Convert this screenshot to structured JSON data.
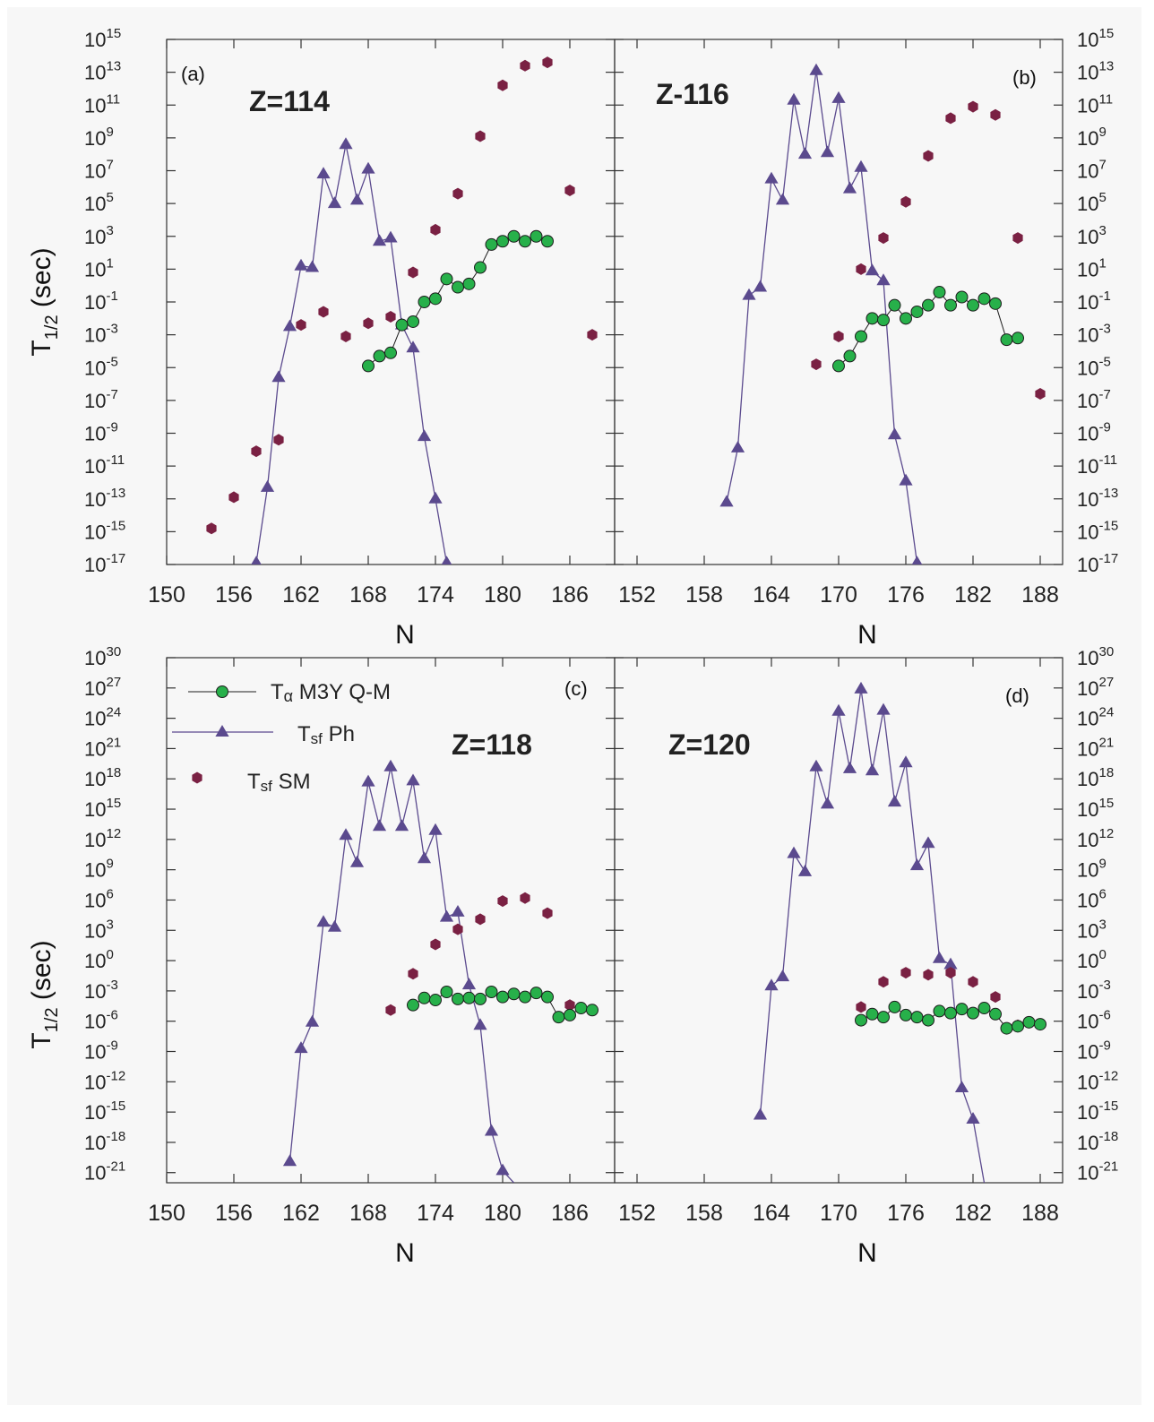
{
  "figure": {
    "y_axis_title_main": "T",
    "y_axis_title_sub": "1/2",
    "y_axis_title_tail": " (sec)",
    "x_axis_title": "N",
    "legend": {
      "alpha": {
        "prefix": "T",
        "sub": "α",
        "label": " M3Y Q-M"
      },
      "sf_ph": {
        "prefix": "T",
        "sub": "sf",
        "label": " Ph"
      },
      "sf_sm": {
        "prefix": "T",
        "sub": "sf",
        "label": " SM"
      }
    },
    "colors": {
      "alpha_fill": "#27b04a",
      "alpha_line": "#1c1c1c",
      "triangle": "#5b4a8e",
      "hexagon": "#7a2143",
      "frame": "#333333"
    }
  },
  "chart_data": [
    {
      "panel": "(a)",
      "z_label": "Z=114",
      "type": "line",
      "xlabel": "N",
      "ylabel": "T1/2 (sec)",
      "xlim": [
        150,
        190
      ],
      "xticks": [
        150,
        156,
        162,
        168,
        174,
        180,
        186
      ],
      "y_scale": "log",
      "ylim_exp": [
        -17,
        15
      ],
      "ytick_exps": [
        -17,
        -15,
        -13,
        -11,
        -9,
        -7,
        -5,
        -3,
        -1,
        1,
        3,
        5,
        7,
        9,
        11,
        13,
        15
      ],
      "series": [
        {
          "key": "tsf_ph",
          "marker": "triangle",
          "x": [
            158,
            159,
            160,
            161,
            162,
            163,
            164,
            165,
            166,
            167,
            168,
            169,
            170,
            171,
            172,
            173,
            174,
            175
          ],
          "y_exp": [
            -16.9,
            -12.3,
            -5.6,
            -2.5,
            1.2,
            1.1,
            6.8,
            5,
            8.6,
            5.2,
            7.1,
            2.7,
            2.9,
            -2.4,
            -3.8,
            -9.2,
            -13,
            -16.9
          ]
        },
        {
          "key": "tsf_sm",
          "marker": "hexagon",
          "x": [
            154,
            156,
            158,
            160,
            162,
            164,
            166,
            168,
            170,
            172,
            174,
            176,
            178,
            180,
            182,
            184,
            186,
            188
          ],
          "y_exp": [
            -14.8,
            -12.9,
            -10.1,
            -9.4,
            -2.4,
            -1.6,
            -3.1,
            -2.3,
            -1.9,
            0.8,
            3.4,
            5.6,
            9.1,
            12.2,
            13.4,
            13.6,
            5.8,
            -3
          ]
        },
        {
          "key": "t_alpha",
          "marker": "circle",
          "x": [
            168,
            169,
            170,
            171,
            172,
            173,
            174,
            175,
            176,
            177,
            178,
            179,
            180,
            181,
            182,
            183,
            184
          ],
          "y_exp": [
            -4.9,
            -4.3,
            -4.1,
            -2.4,
            -2.2,
            -1,
            -0.8,
            0.4,
            -0.1,
            0.1,
            1.1,
            2.5,
            2.7,
            3,
            2.7,
            3,
            2.7
          ]
        }
      ]
    },
    {
      "panel": "(b)",
      "z_label": "Z-116",
      "type": "line",
      "xlabel": "N",
      "ylabel": "T1/2 (sec)",
      "xlim": [
        150,
        190
      ],
      "xticks": [
        152,
        158,
        164,
        170,
        176,
        182,
        188
      ],
      "y_scale": "log",
      "ylim_exp": [
        -17,
        15
      ],
      "ytick_exps": [
        -17,
        -15,
        -13,
        -11,
        -9,
        -7,
        -5,
        -3,
        -1,
        1,
        3,
        5,
        7,
        9,
        11,
        13,
        15
      ],
      "series": [
        {
          "key": "tsf_ph",
          "marker": "triangle",
          "x": [
            160,
            161,
            162,
            163,
            164,
            165,
            166,
            167,
            168,
            169,
            170,
            171,
            172,
            173,
            174,
            175,
            176,
            177
          ],
          "y_exp": [
            -13.2,
            -9.9,
            -0.6,
            -0.1,
            6.5,
            5.2,
            11.3,
            8,
            13.1,
            8.1,
            11.4,
            5.9,
            7.2,
            0.9,
            0.3,
            -9.1,
            -11.9,
            -16.9
          ]
        },
        {
          "key": "tsf_sm",
          "marker": "hexagon",
          "x": [
            168,
            170,
            172,
            174,
            176,
            178,
            180,
            182,
            184,
            186,
            188
          ],
          "y_exp": [
            -4.8,
            -3.1,
            1,
            2.9,
            5.1,
            7.9,
            10.2,
            10.9,
            10.4,
            2.9,
            -6.6
          ]
        },
        {
          "key": "t_alpha",
          "marker": "circle",
          "x": [
            170,
            171,
            172,
            173,
            174,
            175,
            176,
            177,
            178,
            179,
            180,
            181,
            182,
            183,
            184,
            185,
            186
          ],
          "y_exp": [
            -4.9,
            -4.3,
            -3.1,
            -2,
            -2.1,
            -1.2,
            -2,
            -1.6,
            -1.2,
            -0.4,
            -1.2,
            -0.7,
            -1.2,
            -0.8,
            -1.1,
            -3.3,
            -3.2
          ]
        }
      ]
    },
    {
      "panel": "(c)",
      "z_label": "Z=118",
      "type": "line",
      "xlabel": "N",
      "ylabel": "T1/2 (sec)",
      "xlim": [
        150,
        190
      ],
      "xticks": [
        150,
        156,
        162,
        168,
        174,
        180,
        186
      ],
      "y_scale": "log",
      "ylim_exp": [
        -22,
        30
      ],
      "ytick_exps": [
        -21,
        -18,
        -15,
        -12,
        -9,
        -6,
        -3,
        0,
        3,
        6,
        9,
        12,
        15,
        18,
        21,
        24,
        27,
        30
      ],
      "series": [
        {
          "key": "tsf_ph",
          "marker": "triangle",
          "x": [
            161,
            162,
            163,
            164,
            165,
            166,
            167,
            168,
            169,
            170,
            171,
            172,
            173,
            174,
            175,
            176,
            177,
            178,
            179,
            180,
            181
          ],
          "y_exp": [
            -19.9,
            -8.7,
            -6.1,
            3.8,
            3.3,
            12.4,
            9.7,
            17.7,
            13.3,
            19.2,
            13.3,
            17.8,
            10.1,
            12.9,
            4.3,
            4.8,
            -2.4,
            -6.4,
            -16.9,
            -20.8,
            -22
          ]
        },
        {
          "key": "tsf_sm",
          "marker": "hexagon",
          "x": [
            170,
            172,
            174,
            176,
            178,
            180,
            182,
            184,
            186
          ],
          "y_exp": [
            -4.9,
            -1.3,
            1.6,
            3.1,
            4.1,
            5.9,
            6.2,
            4.7,
            -4.4
          ]
        },
        {
          "key": "t_alpha",
          "marker": "circle",
          "x": [
            172,
            173,
            174,
            175,
            176,
            177,
            178,
            179,
            180,
            181,
            182,
            183,
            184,
            185,
            186,
            187,
            188
          ],
          "y_exp": [
            -4.4,
            -3.7,
            -3.9,
            -3.1,
            -3.8,
            -3.7,
            -3.8,
            -3.1,
            -3.6,
            -3.3,
            -3.6,
            -3.2,
            -3.6,
            -5.6,
            -5.4,
            -4.7,
            -4.9
          ]
        }
      ]
    },
    {
      "panel": "(d)",
      "z_label": "Z=120",
      "type": "line",
      "xlabel": "N",
      "ylabel": "T1/2 (sec)",
      "xlim": [
        150,
        190
      ],
      "xticks": [
        152,
        158,
        164,
        170,
        176,
        182,
        188
      ],
      "y_scale": "log",
      "ylim_exp": [
        -22,
        30
      ],
      "ytick_exps": [
        -21,
        -18,
        -15,
        -12,
        -9,
        -6,
        -3,
        0,
        3,
        6,
        9,
        12,
        15,
        18,
        21,
        24,
        27,
        30
      ],
      "series": [
        {
          "key": "tsf_ph",
          "marker": "triangle",
          "x": [
            163,
            164,
            165,
            166,
            167,
            168,
            169,
            170,
            171,
            172,
            173,
            174,
            175,
            176,
            177,
            178,
            179,
            180,
            181,
            182,
            183
          ],
          "y_exp": [
            -15.3,
            -2.5,
            -1.6,
            10.6,
            8.8,
            19.2,
            15.5,
            24.7,
            19,
            26.9,
            18.8,
            24.8,
            15.7,
            19.6,
            9.4,
            11.6,
            0.2,
            -0.4,
            -12.6,
            -15.7,
            -22
          ]
        },
        {
          "key": "tsf_sm",
          "marker": "hexagon",
          "x": [
            172,
            174,
            176,
            178,
            180,
            182,
            184,
            186
          ],
          "y_exp": [
            -4.6,
            -2.1,
            -1.2,
            -1.4,
            -1.2,
            -2.1,
            -3.6,
            -6.4
          ]
        },
        {
          "key": "t_alpha",
          "marker": "circle",
          "x": [
            172,
            173,
            174,
            175,
            176,
            177,
            178,
            179,
            180,
            181,
            182,
            183,
            184,
            185,
            186,
            187,
            188
          ],
          "y_exp": [
            -5.9,
            -5.3,
            -5.6,
            -4.6,
            -5.4,
            -5.6,
            -5.9,
            -5,
            -5.2,
            -4.8,
            -5.2,
            -4.7,
            -5.3,
            -6.7,
            -6.5,
            -6.1,
            -6.3
          ]
        }
      ]
    }
  ]
}
